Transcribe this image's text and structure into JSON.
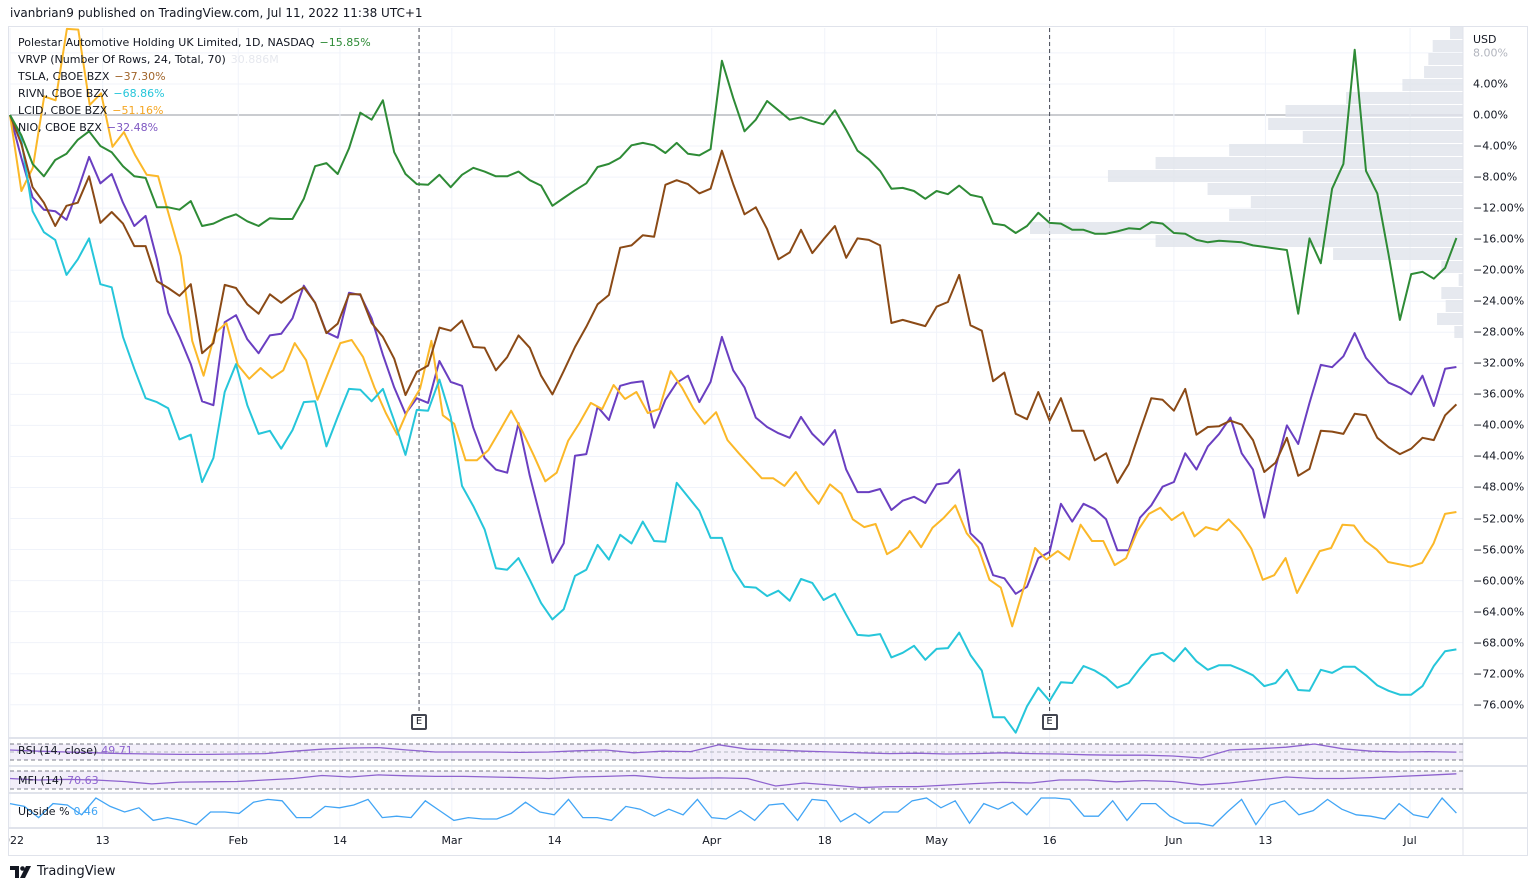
{
  "header": {
    "published": "ivanbrian9 published on TradingView.com, Jul 11, 2022 11:38 UTC+1"
  },
  "footer": {
    "brand": "TradingView"
  },
  "legend": {
    "main": {
      "label": "Polestar Automotive Holding UK Limited, 1D, NASDAQ",
      "value": "−15.85%"
    },
    "vrvp": {
      "label": "VRVP (Number Of Rows, 24, Total, 70)",
      "value": "30.886M"
    },
    "tsla": {
      "label": "TSLA, CBOE BZX",
      "value": "−37.30%"
    },
    "rivn": {
      "label": "RIVN, CBOE BZX",
      "value": "−68.86%"
    },
    "lcid": {
      "label": "LCID, CBOE BZX",
      "value": "−51.16%"
    },
    "nio": {
      "label": "NIO, CBOE BZX",
      "value": "−32.48%"
    }
  },
  "indicators": {
    "rsi": {
      "label": "RSI (14, close)",
      "value": "49.71"
    },
    "mfi": {
      "label": "MFI (14)",
      "value": "70.63"
    },
    "upside": {
      "label": "Upside %",
      "value": "0.46"
    }
  },
  "colors": {
    "ptsr": "#2e8b36",
    "tsla": "#8b4a16",
    "rivn": "#26c6da",
    "lcid": "#fbb829",
    "nio": "#6a3fc1",
    "rsi": "#8e63cf",
    "upside": "#42a5f5",
    "vrvp": "#e0e3eb"
  },
  "chart_data": {
    "type": "line",
    "title": "Polestar Automotive Holding UK Limited, 1D, NASDAQ",
    "ylabel": "USD",
    "yunit": "%",
    "ylim": [
      -80,
      11.5
    ],
    "xlim_trading_days": [
      0,
      128
    ],
    "grid": true,
    "legend_position": "top-left",
    "y_ticks": [
      {
        "value": 8,
        "label": "8.00%"
      },
      {
        "value": 4,
        "label": "4.00%"
      },
      {
        "value": 0,
        "label": "0.00%"
      },
      {
        "value": -4,
        "label": "−4.00%"
      },
      {
        "value": -8,
        "label": "−8.00%"
      },
      {
        "value": -12,
        "label": "−12.00%"
      },
      {
        "value": -16,
        "label": "−16.00%"
      },
      {
        "value": -20,
        "label": "−20.00%"
      },
      {
        "value": -24,
        "label": "−24.00%"
      },
      {
        "value": -28,
        "label": "−28.00%"
      },
      {
        "value": -32,
        "label": "−32.00%"
      },
      {
        "value": -36,
        "label": "−36.00%"
      },
      {
        "value": -40,
        "label": "−40.00%"
      },
      {
        "value": -44,
        "label": "−44.00%"
      },
      {
        "value": -48,
        "label": "−48.00%"
      },
      {
        "value": -52,
        "label": "−52.00%"
      },
      {
        "value": -56,
        "label": "−56.00%"
      },
      {
        "value": -60,
        "label": "−60.00%"
      },
      {
        "value": -64,
        "label": "−64.00%"
      },
      {
        "value": -68,
        "label": "−68.00%"
      },
      {
        "value": -72,
        "label": "−72.00%"
      },
      {
        "value": -76,
        "label": "−76.00%"
      }
    ],
    "x_ticks": [
      {
        "day": 0,
        "label": "2022"
      },
      {
        "day": 8.2,
        "label": "13"
      },
      {
        "day": 20.2,
        "label": "Feb"
      },
      {
        "day": 29.2,
        "label": "14"
      },
      {
        "day": 39.1,
        "label": "Mar"
      },
      {
        "day": 48.2,
        "label": "14"
      },
      {
        "day": 62.1,
        "label": "Apr"
      },
      {
        "day": 72.1,
        "label": "18"
      },
      {
        "day": 82,
        "label": "May"
      },
      {
        "day": 92,
        "label": "16"
      },
      {
        "day": 103,
        "label": "Jun"
      },
      {
        "day": 111.1,
        "label": "13"
      },
      {
        "day": 123.9,
        "label": "Jul"
      }
    ],
    "earnings_markers": [
      {
        "day": 36.2,
        "label": "E"
      },
      {
        "day": 92,
        "label": "E"
      }
    ],
    "series": [
      {
        "key": "ptsr",
        "name": "PSNY",
        "values": [
          0,
          -2.6,
          -6.3,
          -7.9,
          -5.8,
          -5.0,
          -3.2,
          -2.1,
          -4.0,
          -4.8,
          -6.6,
          -7.9,
          -8.1,
          -11.9,
          -11.9,
          -12.2,
          -11.1,
          -14.3,
          -14.0,
          -13.3,
          -12.8,
          -13.7,
          -14.3,
          -13.3,
          -13.4,
          -13.4,
          -10.8,
          -6.6,
          -6.2,
          -7.6,
          -4.3,
          0.3,
          -0.6,
          1.9,
          -4.8,
          -7.6,
          -8.9,
          -9.0,
          -7.7,
          -9.3,
          -7.7,
          -6.8,
          -7.3,
          -7.9,
          -7.9,
          -7.3,
          -8.4,
          -9.1,
          -11.7,
          -10.7,
          -9.7,
          -8.8,
          -6.7,
          -6.3,
          -5.5,
          -3.9,
          -3.6,
          -3.9,
          -4.9,
          -3.6,
          -5.0,
          -5.2,
          -4.4,
          7.0,
          2.2,
          -2.1,
          -0.6,
          1.8,
          0.6,
          -0.6,
          -0.3,
          -0.8,
          -1.2,
          0.6,
          -1.9,
          -4.6,
          -5.7,
          -7.2,
          -9.5,
          -9.4,
          -9.8,
          -10.8,
          -9.8,
          -10.2,
          -9.1,
          -10.3,
          -10.6,
          -14.0,
          -14.2,
          -15.2,
          -14.3,
          -12.6,
          -13.9,
          -14.0,
          -14.8,
          -14.8,
          -15.3,
          -15.3,
          -15.0,
          -14.6,
          -14.7,
          -13.8,
          -14.0,
          -15.2,
          -15.3,
          -16.1,
          -16.4,
          -16.2,
          -16.3,
          -16.4,
          -16.8,
          -17.0,
          -17.2,
          -17.4,
          -25.6,
          -15.9,
          -19.1,
          -9.5,
          -6.3,
          8.4,
          -7.2,
          -10.1,
          -18.0,
          -26.4,
          -20.5,
          -20.2,
          -21.1,
          -19.7,
          -15.85
        ]
      },
      {
        "key": "tsla",
        "name": "TSLA",
        "values": [
          0,
          -3.7,
          -9.3,
          -11.3,
          -14.3,
          -11.7,
          -11.3,
          -7.9,
          -13.9,
          -12.5,
          -14.0,
          -16.9,
          -16.9,
          -21.4,
          -22.3,
          -23.3,
          -21.8,
          -30.7,
          -29.4,
          -21.9,
          -22.3,
          -24.4,
          -25.6,
          -23.1,
          -24.2,
          -23.1,
          -22.2,
          -24.2,
          -28.1,
          -26.9,
          -23.1,
          -23.1,
          -26.8,
          -28.6,
          -31.4,
          -36.1,
          -33.1,
          -32.3,
          -27.4,
          -27.8,
          -26.5,
          -29.9,
          -30.0,
          -32.9,
          -31.2,
          -28.4,
          -30.0,
          -33.6,
          -36.0,
          -33.0,
          -29.9,
          -27.3,
          -24.4,
          -23.2,
          -17.1,
          -16.8,
          -15.5,
          -15.7,
          -9.0,
          -8.4,
          -8.9,
          -10.1,
          -9.5,
          -4.6,
          -8.9,
          -12.8,
          -11.9,
          -14.7,
          -18.6,
          -17.7,
          -14.8,
          -17.8,
          -16.0,
          -14.3,
          -18.4,
          -15.9,
          -16.1,
          -16.8,
          -26.8,
          -26.4,
          -26.8,
          -27.2,
          -24.7,
          -24.1,
          -20.6,
          -27.1,
          -27.8,
          -34.3,
          -33.2,
          -38.5,
          -39.2,
          -35.7,
          -39.4,
          -36.5,
          -40.7,
          -40.7,
          -44.5,
          -43.6,
          -47.4,
          -45.0,
          -40.7,
          -36.5,
          -36.7,
          -38.1,
          -35.3,
          -41.2,
          -40.2,
          -40.1,
          -39.4,
          -39.9,
          -41.9,
          -46.0,
          -44.8,
          -41.6,
          -46.5,
          -45.6,
          -40.7,
          -40.8,
          -41.1,
          -38.5,
          -38.7,
          -41.6,
          -42.8,
          -43.7,
          -43.0,
          -41.6,
          -41.9,
          -38.7,
          -37.3
        ]
      },
      {
        "key": "rivn",
        "name": "RIVN",
        "values": [
          0,
          -3.2,
          -12.4,
          -15.1,
          -16.1,
          -20.6,
          -18.6,
          -15.9,
          -21.8,
          -22.2,
          -28.6,
          -32.7,
          -36.5,
          -37.0,
          -37.8,
          -41.8,
          -41.2,
          -47.3,
          -44.2,
          -35.7,
          -32.1,
          -37.4,
          -41.1,
          -40.7,
          -43.0,
          -40.6,
          -37.0,
          -36.9,
          -42.7,
          -38.9,
          -35.3,
          -35.4,
          -36.9,
          -35.3,
          -39.4,
          -43.8,
          -38.0,
          -38.1,
          -34.1,
          -38.9,
          -47.8,
          -50.4,
          -53.4,
          -58.4,
          -58.6,
          -57.1,
          -59.9,
          -62.9,
          -65.0,
          -63.7,
          -59.4,
          -58.6,
          -55.4,
          -57.3,
          -54.1,
          -55.2,
          -52.4,
          -54.9,
          -55.0,
          -47.4,
          -49.2,
          -51.0,
          -54.5,
          -54.5,
          -58.6,
          -60.8,
          -60.9,
          -62.0,
          -61.3,
          -62.6,
          -59.8,
          -60.3,
          -62.5,
          -61.7,
          -64.4,
          -67.0,
          -67.1,
          -66.9,
          -69.9,
          -69.3,
          -68.4,
          -70.2,
          -68.8,
          -68.7,
          -66.7,
          -69.6,
          -71.6,
          -77.6,
          -77.6,
          -79.6,
          -76.2,
          -73.8,
          -75.5,
          -73.1,
          -73.2,
          -71.0,
          -71.6,
          -72.5,
          -73.8,
          -73.2,
          -71.3,
          -69.6,
          -69.3,
          -70.4,
          -68.7,
          -70.4,
          -71.5,
          -70.9,
          -70.9,
          -71.5,
          -72.2,
          -73.6,
          -73.2,
          -71.5,
          -74.1,
          -74.2,
          -71.5,
          -71.9,
          -71.1,
          -71.1,
          -72.2,
          -73.5,
          -74.2,
          -74.7,
          -74.7,
          -73.6,
          -71.0,
          -69.1,
          -68.86
        ]
      },
      {
        "key": "lcid",
        "name": "LCID",
        "values": [
          0,
          -9.8,
          -6.8,
          2.4,
          1.9,
          11.1,
          11.0,
          1.3,
          2.8,
          -4.1,
          -2.2,
          -5.2,
          -7.7,
          -7.9,
          -13.1,
          -18.2,
          -29.1,
          -33.6,
          -28.1,
          -26.8,
          -32.2,
          -34.0,
          -32.6,
          -33.9,
          -32.9,
          -29.4,
          -31.6,
          -36.7,
          -33.0,
          -29.4,
          -29.0,
          -31.2,
          -35.1,
          -38.4,
          -41.2,
          -37.8,
          -35.3,
          -29.1,
          -38.7,
          -39.8,
          -44.5,
          -44.5,
          -43.2,
          -40.7,
          -38.1,
          -40.8,
          -43.9,
          -47.2,
          -46.1,
          -42.0,
          -39.7,
          -37.1,
          -37.9,
          -34.8,
          -36.6,
          -35.7,
          -38.4,
          -37.9,
          -33.0,
          -35.1,
          -37.8,
          -39.8,
          -38.3,
          -41.9,
          -43.6,
          -45.2,
          -46.8,
          -46.8,
          -47.8,
          -46.0,
          -48.3,
          -50.1,
          -47.6,
          -48.8,
          -52.1,
          -53.1,
          -52.7,
          -56.6,
          -55.7,
          -53.6,
          -55.7,
          -53.2,
          -51.9,
          -50.3,
          -53.9,
          -55.7,
          -59.9,
          -60.9,
          -65.9,
          -61.0,
          -55.8,
          -57.3,
          -56.2,
          -57.3,
          -52.8,
          -54.9,
          -54.9,
          -58.0,
          -57.1,
          -53.6,
          -51.4,
          -50.6,
          -52.2,
          -51.2,
          -54.3,
          -53.1,
          -53.5,
          -52.1,
          -53.6,
          -55.9,
          -59.9,
          -59.3,
          -57.1,
          -61.6,
          -58.9,
          -56.2,
          -55.8,
          -52.8,
          -52.9,
          -54.9,
          -56.0,
          -57.6,
          -57.9,
          -58.2,
          -57.7,
          -55.2,
          -51.4,
          -51.16
        ]
      },
      {
        "key": "nio",
        "name": "NIO",
        "values": [
          0,
          -5.5,
          -10.6,
          -12.2,
          -12.4,
          -13.5,
          -9.7,
          -5.4,
          -8.8,
          -7.6,
          -11.3,
          -14.3,
          -13.0,
          -18.6,
          -25.5,
          -28.6,
          -32.1,
          -36.9,
          -37.4,
          -26.7,
          -25.8,
          -28.9,
          -30.7,
          -28.4,
          -28.2,
          -26.2,
          -22.0,
          -24.2,
          -28.0,
          -28.7,
          -22.9,
          -23.2,
          -26.2,
          -30.9,
          -35.1,
          -38.5,
          -36.5,
          -37.1,
          -31.7,
          -34.4,
          -34.9,
          -40.3,
          -44.2,
          -45.7,
          -46.1,
          -39.7,
          -46.5,
          -52.2,
          -57.7,
          -55.2,
          -43.9,
          -43.7,
          -37.6,
          -39.3,
          -34.9,
          -34.5,
          -34.3,
          -40.3,
          -36.7,
          -34.5,
          -33.6,
          -37.0,
          -34.4,
          -28.6,
          -32.9,
          -35.1,
          -39.0,
          -40.2,
          -41.0,
          -41.6,
          -38.9,
          -41.1,
          -42.5,
          -40.6,
          -45.7,
          -48.6,
          -48.6,
          -48.2,
          -50.9,
          -49.7,
          -49.2,
          -50.0,
          -47.6,
          -47.4,
          -45.7,
          -53.9,
          -55.3,
          -59.3,
          -59.7,
          -61.7,
          -60.8,
          -57.1,
          -56.3,
          -50.1,
          -52.4,
          -50.1,
          -50.8,
          -52.1,
          -56.1,
          -56.1,
          -51.9,
          -50.3,
          -47.9,
          -47.3,
          -43.6,
          -45.7,
          -42.7,
          -41.1,
          -39.0,
          -43.6,
          -45.7,
          -51.9,
          -45.4,
          -40.0,
          -42.4,
          -37.1,
          -32.2,
          -32.5,
          -31.1,
          -28.1,
          -31.3,
          -33.0,
          -34.5,
          -35.1,
          -36.0,
          -33.6,
          -37.5,
          -32.7,
          -32.48
        ]
      }
    ],
    "volume_profile_relative": [
      3,
      7,
      8,
      9,
      14,
      27,
      41,
      45,
      37,
      54,
      71,
      82,
      59,
      49,
      54,
      100,
      71,
      30,
      5,
      1,
      5,
      4,
      6,
      2
    ],
    "rsi": {
      "bands": [
        70,
        50,
        30
      ],
      "values": [
        55,
        52,
        50,
        48,
        46,
        45,
        44,
        44,
        45,
        46,
        52,
        57,
        60,
        61,
        55,
        50,
        50,
        50,
        49,
        50,
        53,
        55,
        48,
        52,
        51,
        68,
        57,
        55,
        52,
        50,
        48,
        46,
        47,
        45,
        46,
        48,
        46,
        45,
        43,
        42,
        42,
        40,
        35,
        55,
        58,
        62,
        70,
        58,
        52,
        50,
        51,
        49.71
      ]
    },
    "mfi": {
      "bands": [
        80,
        20
      ],
      "values": [
        55,
        50,
        52,
        50,
        45,
        37,
        43,
        44,
        45,
        50,
        55,
        65,
        60,
        67,
        64,
        62,
        62,
        60,
        58,
        55,
        60,
        62,
        65,
        58,
        56,
        57,
        55,
        30,
        40,
        33,
        25,
        28,
        28,
        33,
        38,
        42,
        40,
        50,
        50,
        44,
        48,
        45,
        34,
        40,
        50,
        60,
        55,
        55,
        58,
        62,
        66,
        70.63
      ]
    },
    "upside": {
      "values": [
        0.8,
        0.7,
        0.3,
        0.8,
        0.75,
        0.4,
        1.0,
        0.7,
        0.5,
        0.65,
        0.2,
        0.3,
        0.2,
        0.05,
        0.5,
        0.5,
        0.45,
        0.85,
        0.95,
        0.9,
        0.3,
        0.3,
        0.7,
        0.65,
        0.75,
        0.95,
        0.3,
        0.35,
        0.3,
        0.9,
        0.55,
        0.2,
        0.3,
        0.25,
        0.25,
        0.45,
        0.85,
        0.5,
        0.4,
        0.95,
        0.3,
        0.3,
        0.2,
        0.7,
        0.6,
        0.35,
        0.6,
        0.4,
        0.95,
        0.3,
        0.25,
        0.55,
        0.2,
        0.75,
        0.8,
        0.2,
        0.95,
        0.9,
        0.15,
        0.45,
        0.1,
        0.5,
        0.5,
        0.9,
        1.0,
        0.65,
        0.9,
        0.1,
        0.8,
        0.6,
        0.85,
        0.4,
        1.0,
        1.0,
        0.95,
        0.35,
        0.35,
        0.9,
        0.2,
        0.8,
        0.8,
        0.35,
        0.1,
        0.1,
        0.0,
        0.5,
        0.95,
        0.05,
        0.75,
        0.9,
        0.4,
        0.55,
        0.95,
        0.6,
        0.4,
        0.35,
        0.25,
        0.8,
        0.4,
        0.3,
        1.0,
        0.46
      ]
    }
  }
}
